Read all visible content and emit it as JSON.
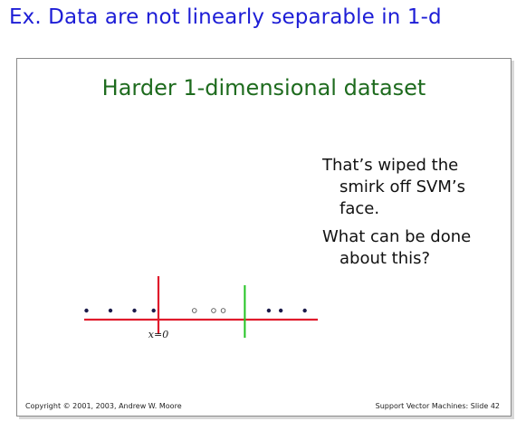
{
  "heading": "Ex. Data are not linearly separable in 1-d",
  "slide": {
    "title": "Harder 1-dimensional dataset",
    "paragraph1": "That’s wiped the smirk off SVM’s face.",
    "paragraph2": "What can be done about this?",
    "axis_label": "x=0",
    "footer_left": "Copyright © 2001, 2003, Andrew W. Moore",
    "footer_right": "Support Vector Machines: Slide 42"
  },
  "colors": {
    "heading": "#1d1dd6",
    "title": "#1e6b1e",
    "axis": "#e01b2c",
    "green_line": "#22c322",
    "dot": "#1a1a4a"
  },
  "points": {
    "negative_class": [
      -3,
      -2,
      -1,
      -0.2,
      4.6,
      5.1,
      6.1
    ],
    "positive_class": [
      1.5,
      2.3,
      2.7
    ]
  }
}
